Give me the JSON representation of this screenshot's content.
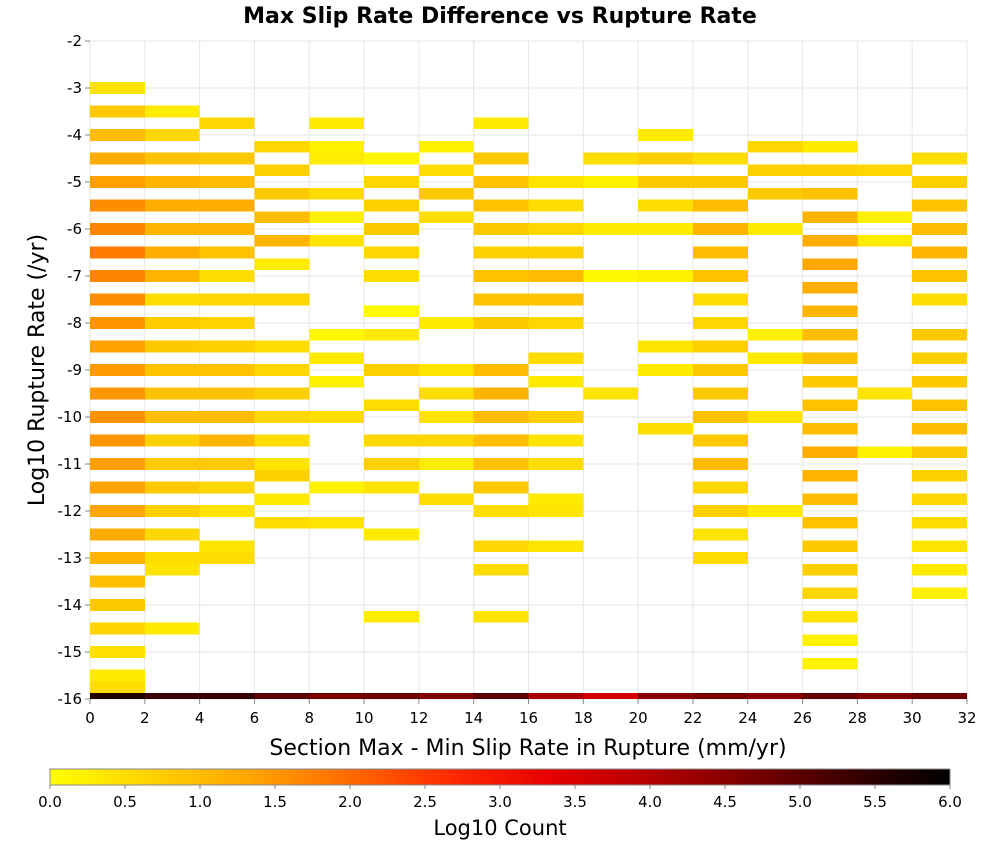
{
  "chart_data": {
    "type": "heatmap",
    "title": "Max Slip Rate Difference vs Rupture Rate",
    "xlabel": "Section Max - Min Slip Rate in Rupture (mm/yr)",
    "ylabel": "Log10 Rupture Rate (/yr)",
    "xlim": [
      0,
      32
    ],
    "ylim": [
      -16,
      -2
    ],
    "x_ticks": [
      "0",
      "2",
      "4",
      "6",
      "8",
      "10",
      "12",
      "14",
      "16",
      "18",
      "20",
      "22",
      "24",
      "26",
      "28",
      "30",
      "32"
    ],
    "y_ticks": [
      "-2",
      "-3",
      "-4",
      "-5",
      "-6",
      "-7",
      "-8",
      "-9",
      "-10",
      "-11",
      "-12",
      "-13",
      "-14",
      "-15",
      "-16"
    ],
    "x_bin_width": 2,
    "y_bin_height": 0.25,
    "grid": true,
    "colorbar": {
      "title": "Log10 Count",
      "range": [
        0,
        6
      ],
      "tick_labels": [
        "0.0",
        "0.5",
        "1.0",
        "1.5",
        "2.0",
        "2.5",
        "3.0",
        "3.5",
        "4.0",
        "4.5",
        "5.0",
        "5.5",
        "6.0"
      ],
      "colors": [
        "#ffff00",
        "#ffd200",
        "#ffa500",
        "#ff6a00",
        "#ff2a00",
        "#e60000",
        "#b40000",
        "#7a0000",
        "#3a0000",
        "#000000"
      ]
    },
    "columns": [
      {
        "x": 1,
        "cells": [
          [
            -3,
            0.4
          ],
          [
            -3.5,
            0.8
          ],
          [
            -4,
            1.0
          ],
          [
            -4.5,
            1.2
          ],
          [
            -5,
            1.4
          ],
          [
            -5.5,
            1.6
          ],
          [
            -6,
            1.7
          ],
          [
            -6.5,
            1.8
          ],
          [
            -7,
            1.7
          ],
          [
            -7.5,
            1.6
          ],
          [
            -8,
            1.5
          ],
          [
            -8.5,
            1.4
          ],
          [
            -9,
            1.45
          ],
          [
            -9.5,
            1.5
          ],
          [
            -10,
            1.55
          ],
          [
            -10.5,
            1.5
          ],
          [
            -11,
            1.4
          ],
          [
            -11.5,
            1.35
          ],
          [
            -12,
            1.3
          ],
          [
            -12.5,
            1.25
          ],
          [
            -13,
            1.1
          ],
          [
            -13.5,
            0.95
          ],
          [
            -14,
            0.8
          ],
          [
            -14.5,
            0.65
          ],
          [
            -15,
            0.45
          ],
          [
            -15.5,
            0.3
          ],
          [
            -15.75,
            0.5
          ]
        ]
      },
      {
        "x": 3,
        "cells": [
          [
            -3.5,
            0.3
          ],
          [
            -4,
            0.6
          ],
          [
            -4.5,
            0.9
          ],
          [
            -5,
            1.1
          ],
          [
            -5.5,
            1.2
          ],
          [
            -6,
            1.1
          ],
          [
            -6.5,
            1.2
          ],
          [
            -7,
            1.1
          ],
          [
            -7.5,
            0.5
          ],
          [
            -8,
            0.75
          ],
          [
            -8.5,
            0.8
          ],
          [
            -9,
            0.9
          ],
          [
            -9.5,
            0.9
          ],
          [
            -10,
            0.95
          ],
          [
            -10.5,
            0.7
          ],
          [
            -11,
            0.8
          ],
          [
            -11.5,
            0.8
          ],
          [
            -12,
            0.7
          ],
          [
            -12.5,
            0.6
          ],
          [
            -13,
            0.5
          ],
          [
            -13.25,
            0.4
          ],
          [
            -14.5,
            0.3
          ]
        ]
      },
      {
        "x": 5,
        "cells": [
          [
            -3.75,
            0.6
          ],
          [
            -4.5,
            0.8
          ],
          [
            -5,
            1.0
          ],
          [
            -5.5,
            1.2
          ],
          [
            -6,
            1.1
          ],
          [
            -6.5,
            0.9
          ],
          [
            -7,
            0.5
          ],
          [
            -7.5,
            0.6
          ],
          [
            -8,
            0.65
          ],
          [
            -8.5,
            0.7
          ],
          [
            -9,
            0.9
          ],
          [
            -9.5,
            0.9
          ],
          [
            -10,
            1.0
          ],
          [
            -10.5,
            1.1
          ],
          [
            -11,
            0.8
          ],
          [
            -11.5,
            0.6
          ],
          [
            -12,
            0.4
          ],
          [
            -12.75,
            0.4
          ],
          [
            -13,
            0.5
          ]
        ]
      },
      {
        "x": 7,
        "cells": [
          [
            -4.25,
            0.6
          ],
          [
            -4.75,
            0.7
          ],
          [
            -5.25,
            0.8
          ],
          [
            -5.75,
            1.0
          ],
          [
            -6.25,
            1.1
          ],
          [
            -6.75,
            0.3
          ],
          [
            -7.5,
            0.6
          ],
          [
            -8.5,
            0.5
          ],
          [
            -9,
            0.6
          ],
          [
            -9.5,
            0.7
          ],
          [
            -10,
            0.6
          ],
          [
            -10.5,
            0.5
          ],
          [
            -11,
            0.4
          ],
          [
            -11.25,
            0.7
          ],
          [
            -11.75,
            0.3
          ],
          [
            -12.25,
            0.5
          ]
        ]
      },
      {
        "x": 9,
        "cells": [
          [
            -3.75,
            0.3
          ],
          [
            -4.25,
            0.2
          ],
          [
            -4.5,
            0.3
          ],
          [
            -5.25,
            0.5
          ],
          [
            -5.75,
            0.2
          ],
          [
            -6.25,
            0.4
          ],
          [
            -8.25,
            0.1
          ],
          [
            -8.75,
            0.3
          ],
          [
            -9.25,
            0.2
          ],
          [
            -10,
            0.5
          ],
          [
            -11.5,
            0.2
          ],
          [
            -12.25,
            0.4
          ]
        ]
      },
      {
        "x": 11,
        "cells": [
          [
            -4.5,
            0.1
          ],
          [
            -5,
            0.6
          ],
          [
            -5.5,
            0.7
          ],
          [
            -6,
            0.8
          ],
          [
            -6.5,
            0.6
          ],
          [
            -7,
            0.5
          ],
          [
            -7.75,
            0.1
          ],
          [
            -8.25,
            0.3
          ],
          [
            -9,
            0.7
          ],
          [
            -9.75,
            0.5
          ],
          [
            -10.5,
            0.6
          ],
          [
            -11,
            0.7
          ],
          [
            -11.5,
            0.4
          ],
          [
            -12.5,
            0.3
          ],
          [
            -14.25,
            0.3
          ]
        ]
      },
      {
        "x": 13,
        "cells": [
          [
            -4.25,
            0.2
          ],
          [
            -4.75,
            0.5
          ],
          [
            -5.25,
            0.8
          ],
          [
            -5.75,
            0.5
          ],
          [
            -8,
            0.3
          ],
          [
            -9,
            0.4
          ],
          [
            -9.5,
            0.5
          ],
          [
            -10,
            0.4
          ],
          [
            -10.5,
            0.6
          ],
          [
            -11,
            0.3
          ],
          [
            -11.75,
            0.5
          ]
        ]
      },
      {
        "x": 15,
        "cells": [
          [
            -3.75,
            0.3
          ],
          [
            -4.5,
            0.8
          ],
          [
            -5,
            0.9
          ],
          [
            -5.5,
            0.9
          ],
          [
            -6,
            0.8
          ],
          [
            -6.5,
            0.7
          ],
          [
            -7,
            0.9
          ],
          [
            -7.5,
            0.9
          ],
          [
            -8,
            0.8
          ],
          [
            -9,
            1.0
          ],
          [
            -9.5,
            1.1
          ],
          [
            -10,
            1.0
          ],
          [
            -10.5,
            1.0
          ],
          [
            -11,
            0.9
          ],
          [
            -11.5,
            0.8
          ],
          [
            -12,
            0.5
          ],
          [
            -12.75,
            0.6
          ],
          [
            -13.25,
            0.5
          ],
          [
            -14.25,
            0.4
          ]
        ]
      },
      {
        "x": 17,
        "cells": [
          [
            -5,
            0.4
          ],
          [
            -5.5,
            0.5
          ],
          [
            -6,
            0.6
          ],
          [
            -6.5,
            0.7
          ],
          [
            -7,
            1.0
          ],
          [
            -7.5,
            0.9
          ],
          [
            -8,
            0.6
          ],
          [
            -8.75,
            0.5
          ],
          [
            -9.25,
            0.3
          ],
          [
            -10,
            0.7
          ],
          [
            -10.5,
            0.4
          ],
          [
            -11,
            0.5
          ],
          [
            -11.75,
            0.3
          ],
          [
            -12,
            0.4
          ],
          [
            -12.75,
            0.4
          ]
        ]
      },
      {
        "x": 19,
        "cells": [
          [
            -4.5,
            0.5
          ],
          [
            -5,
            0.2
          ],
          [
            -6,
            0.3
          ],
          [
            -7,
            0.1
          ],
          [
            -9.5,
            0.4
          ]
        ]
      },
      {
        "x": 21,
        "cells": [
          [
            -4,
            0.3
          ],
          [
            -4.5,
            0.7
          ],
          [
            -5,
            0.8
          ],
          [
            -5.5,
            0.5
          ],
          [
            -6,
            0.3
          ],
          [
            -7,
            0.2
          ],
          [
            -8.5,
            0.4
          ],
          [
            -9,
            0.3
          ],
          [
            -10.25,
            0.5
          ]
        ]
      },
      {
        "x": 23,
        "cells": [
          [
            -4.5,
            0.5
          ],
          [
            -5,
            0.8
          ],
          [
            -5.5,
            1.0
          ],
          [
            -6,
            1.1
          ],
          [
            -6.5,
            1.0
          ],
          [
            -7,
            0.9
          ],
          [
            -7.5,
            0.5
          ],
          [
            -8,
            0.6
          ],
          [
            -8.5,
            0.7
          ],
          [
            -9,
            0.8
          ],
          [
            -9.5,
            0.8
          ],
          [
            -10,
            0.9
          ],
          [
            -10.5,
            0.8
          ],
          [
            -11,
            1.0
          ],
          [
            -11.5,
            0.6
          ],
          [
            -12,
            0.7
          ],
          [
            -12.5,
            0.4
          ],
          [
            -13,
            0.5
          ]
        ]
      },
      {
        "x": 25,
        "cells": [
          [
            -4.25,
            0.6
          ],
          [
            -4.75,
            0.7
          ],
          [
            -5.25,
            0.8
          ],
          [
            -6,
            0.3
          ],
          [
            -8.25,
            0.2
          ],
          [
            -8.75,
            0.3
          ],
          [
            -10,
            0.4
          ],
          [
            -12,
            0.3
          ]
        ]
      },
      {
        "x": 27,
        "cells": [
          [
            -4.25,
            0.3
          ],
          [
            -4.75,
            0.7
          ],
          [
            -5.25,
            0.9
          ],
          [
            -5.75,
            1.1
          ],
          [
            -6.25,
            1.2
          ],
          [
            -6.75,
            1.3
          ],
          [
            -7.25,
            1.2
          ],
          [
            -7.75,
            1.1
          ],
          [
            -8.25,
            1.0
          ],
          [
            -8.75,
            0.9
          ],
          [
            -9.25,
            0.8
          ],
          [
            -9.75,
            0.9
          ],
          [
            -10.25,
            1.0
          ],
          [
            -10.75,
            1.2
          ],
          [
            -11.25,
            1.1
          ],
          [
            -11.75,
            1.0
          ],
          [
            -12.25,
            0.9
          ],
          [
            -12.75,
            0.8
          ],
          [
            -13.25,
            0.7
          ],
          [
            -13.75,
            0.6
          ],
          [
            -14.25,
            0.4
          ],
          [
            -14.75,
            0.2
          ],
          [
            -15.25,
            0.15
          ]
        ]
      },
      {
        "x": 29,
        "cells": [
          [
            -4.75,
            0.6
          ],
          [
            -5.75,
            0.2
          ],
          [
            -6.25,
            0.3
          ],
          [
            -9.5,
            0.4
          ],
          [
            -10.75,
            0.2
          ]
        ]
      },
      {
        "x": 31,
        "cells": [
          [
            -4.5,
            0.5
          ],
          [
            -5,
            0.7
          ],
          [
            -5.5,
            0.9
          ],
          [
            -6,
            1.0
          ],
          [
            -6.5,
            1.1
          ],
          [
            -7,
            0.9
          ],
          [
            -7.5,
            0.5
          ],
          [
            -8.25,
            0.8
          ],
          [
            -8.75,
            0.7
          ],
          [
            -9.25,
            0.8
          ],
          [
            -9.75,
            0.9
          ],
          [
            -10.25,
            1.0
          ],
          [
            -10.75,
            0.8
          ],
          [
            -11.25,
            0.7
          ],
          [
            -11.75,
            0.6
          ],
          [
            -12.25,
            0.5
          ],
          [
            -12.75,
            0.4
          ],
          [
            -13.25,
            0.3
          ],
          [
            -13.75,
            0.2
          ]
        ]
      }
    ],
    "baseline_row": {
      "y": -16,
      "values": [
        5.6,
        5.3,
        5.4,
        5.0,
        4.7,
        4.8,
        4.6,
        5.0,
        4.1,
        3.6,
        4.5,
        4.7,
        4.5,
        4.9,
        4.6,
        4.8
      ]
    }
  }
}
